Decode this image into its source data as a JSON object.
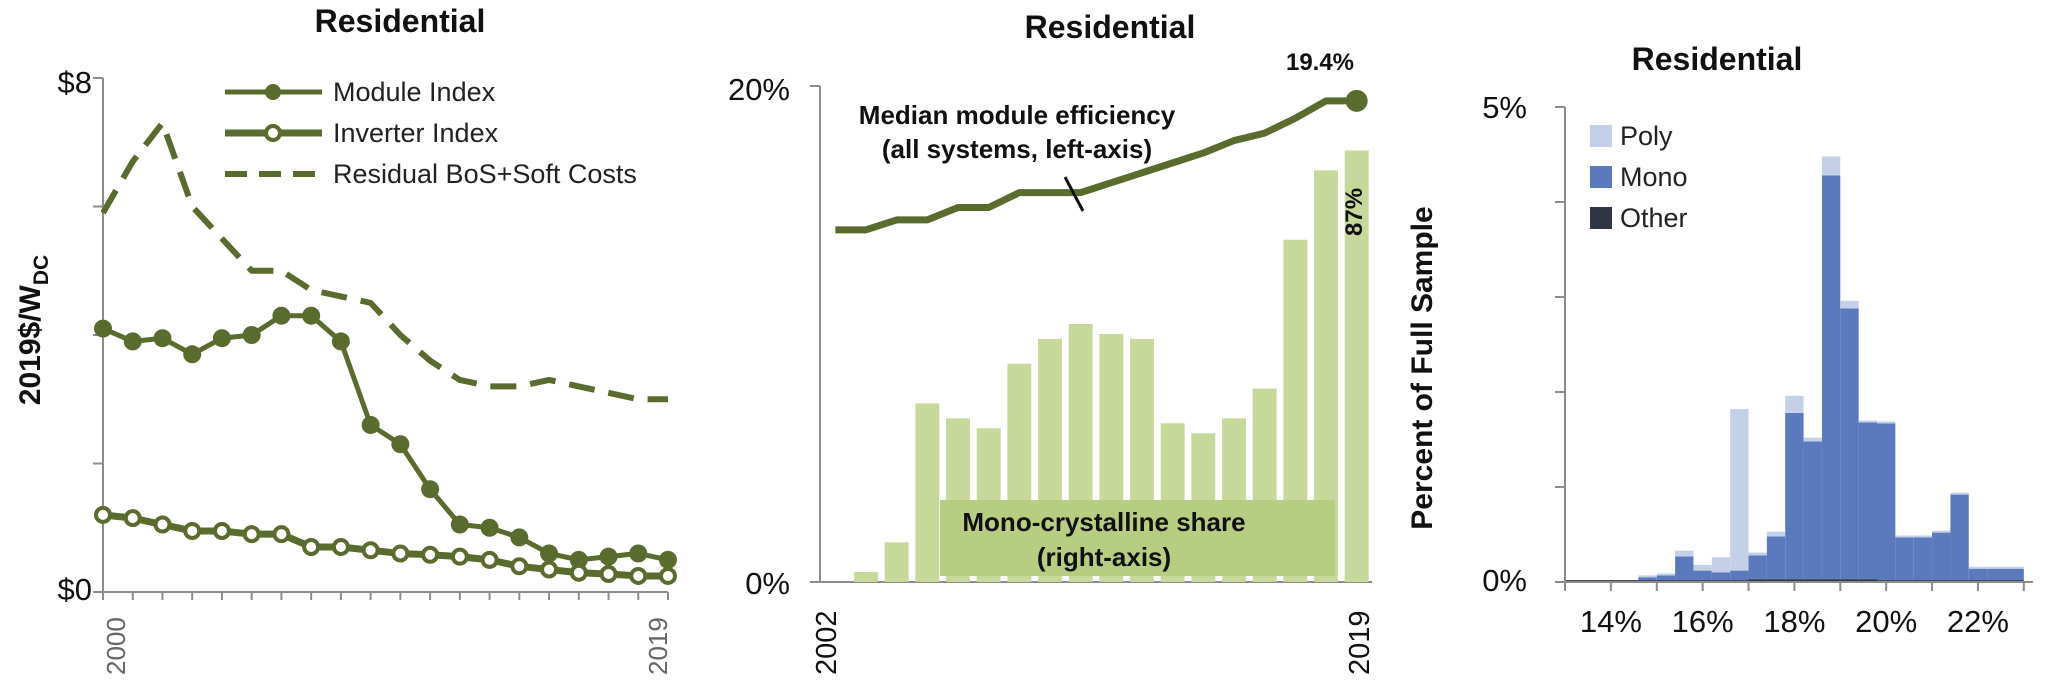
{
  "chart_data": [
    {
      "type": "line",
      "title": "Residential",
      "ylabel": "2019$/W",
      "ylabel_sub": "DC",
      "ytick_labels": [
        "$8",
        "$0"
      ],
      "ylim": [
        0,
        8
      ],
      "xtick_labels": [
        "2000",
        "2019"
      ],
      "x": [
        2000,
        2001,
        2002,
        2003,
        2004,
        2005,
        2006,
        2007,
        2008,
        2009,
        2010,
        2011,
        2012,
        2013,
        2014,
        2015,
        2016,
        2017,
        2018,
        2019
      ],
      "series": [
        {
          "name": "Module Index",
          "style": "filled-markers",
          "values": [
            4.1,
            3.9,
            3.95,
            3.7,
            3.95,
            4.0,
            4.3,
            4.3,
            3.9,
            2.6,
            2.3,
            1.6,
            1.05,
            1.0,
            0.85,
            0.6,
            0.5,
            0.55,
            0.6,
            0.5
          ]
        },
        {
          "name": "Inverter Index",
          "style": "open-markers",
          "values": [
            1.2,
            1.15,
            1.05,
            0.95,
            0.95,
            0.9,
            0.9,
            0.7,
            0.7,
            0.65,
            0.6,
            0.58,
            0.55,
            0.5,
            0.4,
            0.35,
            0.3,
            0.28,
            0.25,
            0.25
          ]
        },
        {
          "name": "Residual BoS+Soft Costs",
          "style": "dashed",
          "values": [
            5.9,
            6.7,
            7.3,
            6.0,
            5.5,
            5.0,
            5.0,
            4.7,
            4.6,
            4.5,
            4.0,
            3.6,
            3.3,
            3.2,
            3.2,
            3.3,
            3.2,
            3.1,
            3.0,
            3.0
          ]
        }
      ],
      "legend_position": "top-right"
    },
    {
      "type": "bar+line",
      "title": "Residential",
      "ytick_labels": [
        "20%",
        "0%"
      ],
      "ylim_line": [
        0,
        20
      ],
      "ylim_bars": [
        0,
        100
      ],
      "xtick_labels": [
        "2002",
        "2019"
      ],
      "x": [
        2002,
        2003,
        2004,
        2005,
        2006,
        2007,
        2008,
        2009,
        2010,
        2011,
        2012,
        2013,
        2014,
        2015,
        2016,
        2017,
        2018,
        2019
      ],
      "line": {
        "name": "Median module efficiency",
        "values": [
          14.2,
          14.2,
          14.6,
          14.6,
          15.1,
          15.1,
          15.7,
          15.7,
          15.7,
          16.1,
          16.5,
          16.9,
          17.3,
          17.8,
          18.1,
          18.7,
          19.4,
          19.4
        ]
      },
      "bars": {
        "name": "Mono-crystalline share",
        "values": [
          0,
          2,
          8,
          36,
          33,
          31,
          44,
          49,
          52,
          50,
          49,
          32,
          30,
          33,
          39,
          69,
          83,
          87
        ]
      },
      "annotations": {
        "efficiency_label_1": "Median module efficiency",
        "efficiency_label_2": "(all systems, left-axis)",
        "mono_label_1": "Mono-crystalline share",
        "mono_label_2": "(right-axis)",
        "end_efficiency": "19.4%",
        "end_share": "87%"
      }
    },
    {
      "type": "histogram-stacked",
      "title": "Residential",
      "ylabel": "Percent of Full Sample",
      "ytick_labels": [
        "5%",
        "0%"
      ],
      "ylim": [
        0,
        5
      ],
      "xlim": [
        13.0,
        23.2
      ],
      "xtick_labels": [
        "14%",
        "16%",
        "18%",
        "20%",
        "22%"
      ],
      "xtick_values": [
        14,
        16,
        18,
        20,
        22
      ],
      "bin_edges": [
        13.0,
        13.4,
        13.8,
        14.2,
        14.6,
        15.0,
        15.4,
        15.8,
        16.2,
        16.6,
        17.0,
        17.4,
        17.8,
        18.2,
        18.6,
        19.0,
        19.4,
        19.8,
        20.2,
        20.6,
        21.0,
        21.4,
        21.8,
        22.2,
        22.6,
        23.0
      ],
      "series": [
        {
          "name": "Other",
          "values": [
            0.02,
            0.02,
            0.02,
            0.02,
            0.02,
            0.02,
            0.02,
            0.02,
            0.02,
            0.02,
            0.03,
            0.03,
            0.03,
            0.03,
            0.03,
            0.03,
            0.03,
            0.02,
            0.02,
            0.02,
            0.02,
            0.02,
            0.02,
            0.02,
            0.02
          ]
        },
        {
          "name": "Mono",
          "values": [
            0.0,
            0.0,
            0.0,
            0.0,
            0.03,
            0.05,
            0.25,
            0.1,
            0.08,
            0.1,
            0.25,
            0.45,
            1.75,
            1.45,
            4.25,
            2.85,
            1.65,
            1.65,
            0.45,
            0.45,
            0.5,
            0.9,
            0.12,
            0.12,
            0.12
          ]
        },
        {
          "name": "Poly",
          "values": [
            0.0,
            0.0,
            0.0,
            0.0,
            0.02,
            0.02,
            0.06,
            0.06,
            0.16,
            1.7,
            0.03,
            0.05,
            0.18,
            0.04,
            0.2,
            0.08,
            0.02,
            0.02,
            0.02,
            0.02,
            0.02,
            0.02,
            0.02,
            0.02,
            0.02
          ]
        }
      ],
      "legend": [
        "Poly",
        "Mono",
        "Other"
      ],
      "legend_position": "top-left"
    }
  ],
  "colors": {
    "olive": "#5a6b2e",
    "bar_green": "#c6d89a",
    "mono_label_bg": "#b7cd82",
    "poly": "#c4d0e8",
    "mono": "#5b79bd",
    "other": "#2f3542",
    "axis": "#8c8c8c"
  }
}
